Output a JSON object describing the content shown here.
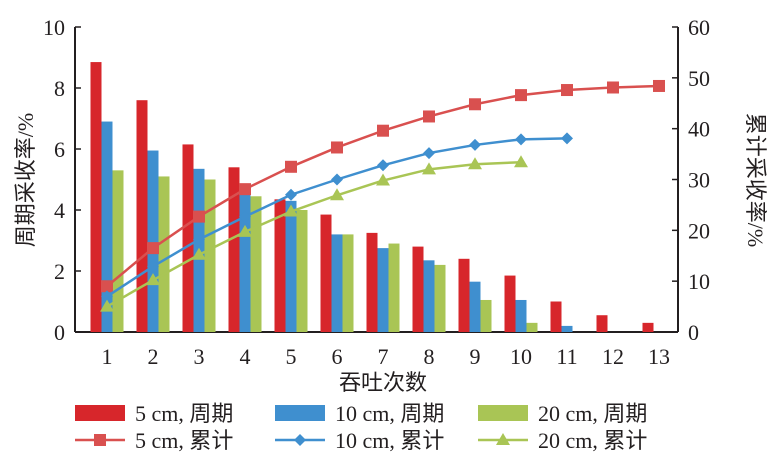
{
  "chart_data": {
    "type": "bar+line",
    "xlabel": "吞吐次数",
    "ylabel": "周期采收率/%",
    "y2label": "累计采收率/%",
    "categories": [
      "1",
      "2",
      "3",
      "4",
      "5",
      "6",
      "7",
      "8",
      "9",
      "10",
      "11",
      "12",
      "13"
    ],
    "ylim": [
      0,
      10
    ],
    "yticks": [
      "0",
      "2",
      "4",
      "6",
      "8",
      "10"
    ],
    "y2lim": [
      0,
      60
    ],
    "y2ticks": [
      "0",
      "10",
      "20",
      "30",
      "40",
      "50",
      "60"
    ],
    "bar_series": [
      {
        "name": "5 cm, 周期",
        "color": "#d7262b",
        "values": [
          8.85,
          7.6,
          6.15,
          5.4,
          4.35,
          3.85,
          3.25,
          2.8,
          2.4,
          1.85,
          1.0,
          0.55,
          0.3
        ]
      },
      {
        "name": "10 cm, 周期",
        "color": "#3f8fcf",
        "values": [
          6.9,
          5.95,
          5.35,
          4.5,
          4.3,
          3.2,
          2.75,
          2.35,
          1.65,
          1.05,
          0.2
        ]
      },
      {
        "name": "20 cm, 周期",
        "color": "#a9c555",
        "values": [
          5.3,
          5.1,
          5.0,
          4.45,
          4.0,
          3.2,
          2.9,
          2.2,
          1.05,
          0.3
        ]
      }
    ],
    "line_series": [
      {
        "name": "5 cm, 累计",
        "color": "#d9504f",
        "marker": "square",
        "values": [
          9,
          16.5,
          22.7,
          28.1,
          32.5,
          36.3,
          39.6,
          42.4,
          44.8,
          46.6,
          47.6,
          48.1,
          48.4
        ]
      },
      {
        "name": "10 cm, 累计",
        "color": "#3f8fcf",
        "marker": "diamond",
        "values": [
          7,
          12.9,
          18.2,
          22.7,
          27,
          30,
          32.8,
          35.2,
          36.8,
          37.9,
          38.1
        ]
      },
      {
        "name": "20 cm, 累计",
        "color": "#a9c555",
        "marker": "triangle",
        "values": [
          5,
          10.2,
          15.2,
          19.7,
          23.7,
          26.9,
          29.8,
          32,
          33,
          33.4
        ]
      }
    ],
    "legend_position": "bottom",
    "grid": false
  }
}
